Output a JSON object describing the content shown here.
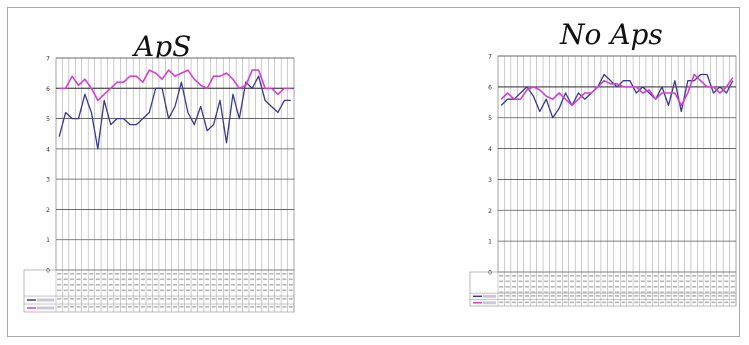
{
  "chart_data": [
    {
      "type": "line",
      "title": "ApS",
      "ylim": [
        0,
        7
      ],
      "yticks": [
        "0",
        "1",
        "2",
        "3",
        "4",
        "5",
        "6",
        "7"
      ],
      "grid": true,
      "legend": "table-left",
      "reference_line": 6,
      "series": [
        {
          "color": "#3a3a8c",
          "values": [
            4.4,
            5.2,
            5.0,
            5.0,
            5.8,
            5.2,
            4.0,
            5.6,
            4.8,
            5.0,
            5.0,
            4.8,
            4.8,
            5.0,
            5.2,
            6.0,
            6.0,
            5.0,
            5.4,
            6.2,
            5.2,
            4.8,
            5.4,
            4.6,
            4.8,
            5.6,
            4.2,
            5.8,
            5.0,
            6.2,
            6.0,
            6.4,
            5.6,
            5.4,
            5.2,
            5.6,
            5.6
          ]
        },
        {
          "color": "#d63fd6",
          "values": [
            6.0,
            6.0,
            6.4,
            6.1,
            6.3,
            6.0,
            5.6,
            5.8,
            6.0,
            6.2,
            6.2,
            6.4,
            6.4,
            6.2,
            6.6,
            6.5,
            6.3,
            6.6,
            6.4,
            6.5,
            6.6,
            6.3,
            6.1,
            6.0,
            6.4,
            6.4,
            6.5,
            6.3,
            6.0,
            6.1,
            6.6,
            6.6,
            6.0,
            6.0,
            5.8,
            6.0,
            6.0
          ]
        }
      ]
    },
    {
      "type": "line",
      "title": "No Aps",
      "ylim": [
        0,
        7
      ],
      "yticks": [
        "0",
        "1",
        "2",
        "3",
        "4",
        "5",
        "6",
        "7"
      ],
      "grid": true,
      "legend": "table-left",
      "reference_line": 6,
      "series": [
        {
          "color": "#3a3a8c",
          "values": [
            5.4,
            5.6,
            5.6,
            5.8,
            6.0,
            5.7,
            5.2,
            5.6,
            5.0,
            5.3,
            5.8,
            5.4,
            5.8,
            5.6,
            5.8,
            6.0,
            6.4,
            6.2,
            6.0,
            6.2,
            6.2,
            5.8,
            6.0,
            5.8,
            5.6,
            6.0,
            5.4,
            6.2,
            5.2,
            6.2,
            6.2,
            6.4,
            6.4,
            5.8,
            6.0,
            5.8,
            6.2
          ]
        },
        {
          "color": "#d63fd6",
          "values": [
            5.6,
            5.8,
            5.6,
            5.6,
            5.9,
            6.0,
            5.9,
            5.7,
            5.6,
            5.8,
            5.6,
            5.4,
            5.6,
            5.8,
            5.8,
            6.0,
            6.2,
            6.1,
            6.1,
            6.0,
            6.0,
            6.0,
            5.8,
            5.9,
            5.6,
            5.8,
            5.8,
            5.8,
            5.4,
            5.8,
            6.4,
            6.2,
            6.0,
            6.0,
            5.8,
            6.0,
            6.3
          ]
        }
      ]
    }
  ]
}
